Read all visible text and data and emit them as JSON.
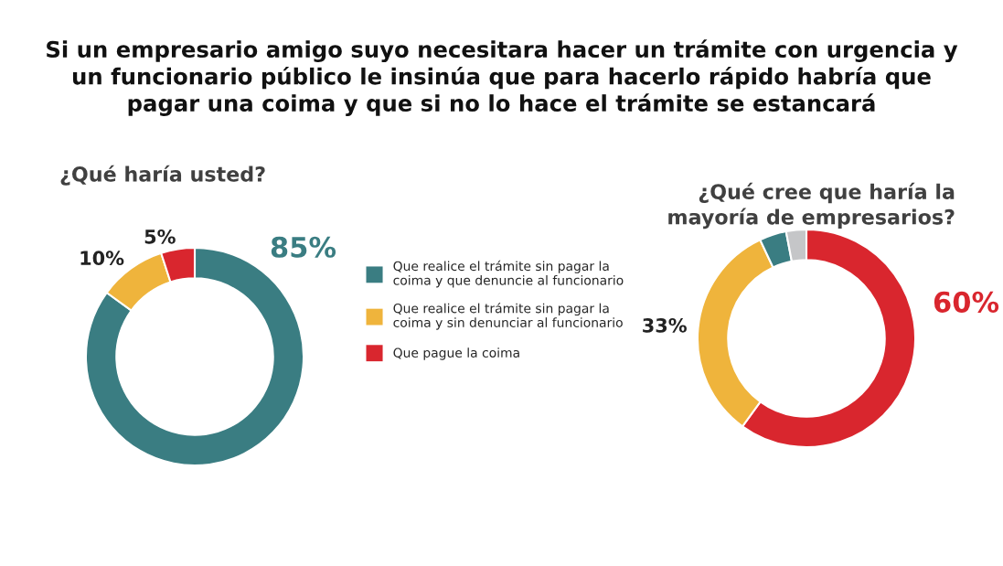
{
  "chart_data": [
    {
      "type": "donut",
      "title": "Si un empresario amigo suyo necesitara hacer un trámite con urgencia y\nun funcionario público le insinúa que para hacerlo rápido habría que\npagar una coima y que si no lo hace el trámite se estancará",
      "subtitle": "¿Qué haría usted?",
      "categories": [
        "Que realice el trámite sin pagar la\ncoima y que denuncie al funcionario",
        "Que realice el trámite sin pagar la\ncoima y sin denunciar al funcionario",
        "Que pague la coima"
      ],
      "values": [
        85,
        10,
        5
      ],
      "value_labels": [
        "85%",
        "10%",
        "5%"
      ],
      "colors": [
        "#3a7d82",
        "#efb43c",
        "#d9262e"
      ],
      "legend": "right"
    },
    {
      "type": "donut",
      "subtitle": "¿Qué cree que haría la\nmayoría de empresarios?",
      "categories": [
        null,
        null,
        null,
        null
      ],
      "values": [
        60,
        33,
        4,
        3
      ],
      "value_labels": [
        "60%",
        "33%",
        null,
        null
      ],
      "colors": [
        "#d9262e",
        "#efb43c",
        "#3a7d82",
        "#c5c6c8"
      ]
    }
  ]
}
